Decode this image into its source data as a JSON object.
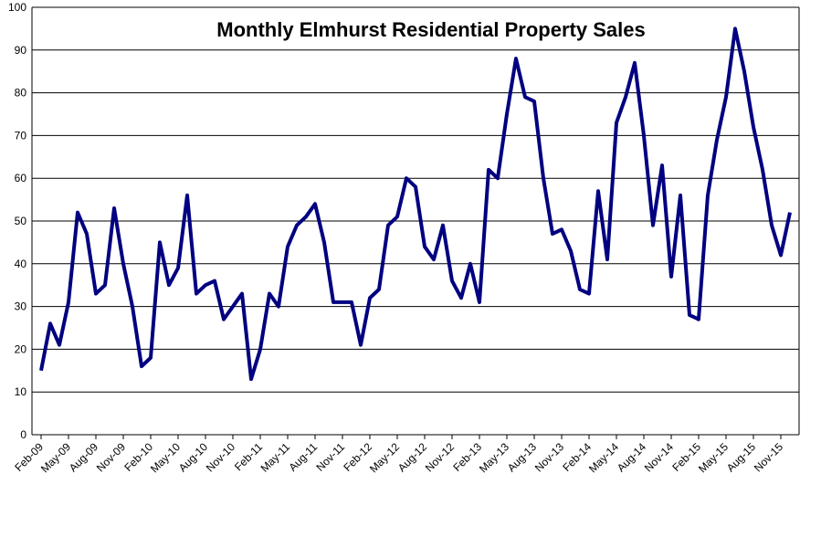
{
  "chart_data": {
    "type": "line",
    "title": "Monthly Elmhurst Residential Property Sales",
    "categories": [
      "Feb-09",
      null,
      null,
      "May-09",
      null,
      null,
      "Aug-09",
      null,
      null,
      "Nov-09",
      null,
      null,
      "Feb-10",
      null,
      null,
      "May-10",
      null,
      null,
      "Aug-10",
      null,
      null,
      "Nov-10",
      null,
      null,
      "Feb-11",
      null,
      null,
      "May-11",
      null,
      null,
      "Aug-11",
      null,
      null,
      "Nov-11",
      null,
      null,
      "Feb-12",
      null,
      null,
      "May-12",
      null,
      null,
      "Aug-12",
      null,
      null,
      "Nov-12",
      null,
      null,
      "Feb-13",
      null,
      null,
      "May-13",
      null,
      null,
      "Aug-13",
      null,
      null,
      "Nov-13",
      null,
      null,
      "Feb-14",
      null,
      null,
      "May-14",
      null,
      null,
      "Aug-14",
      null,
      null,
      "Nov-14",
      null,
      null,
      "Feb-15",
      null,
      null,
      "May-15",
      null,
      null,
      "Aug-15",
      null,
      null,
      "Nov-15",
      null
    ],
    "series": [
      {
        "color": "#000080",
        "values": [
          15,
          26,
          21,
          31,
          52,
          47,
          33,
          35,
          53,
          40,
          30,
          16,
          18,
          45,
          35,
          39,
          56,
          33,
          35,
          36,
          27,
          30,
          33,
          13,
          20,
          33,
          30,
          44,
          49,
          51,
          54,
          45,
          31,
          31,
          31,
          21,
          32,
          34,
          49,
          51,
          60,
          58,
          44,
          41,
          49,
          36,
          32,
          40,
          31,
          62,
          60,
          75,
          88,
          79,
          78,
          60,
          47,
          48,
          43,
          34,
          33,
          57,
          41,
          73,
          79,
          87,
          70,
          49,
          63,
          37,
          56,
          28,
          27,
          56,
          69,
          79,
          95,
          85,
          72,
          62,
          49,
          42,
          52
        ]
      }
    ],
    "ylim": [
      0,
      100
    ],
    "yticks": [
      0,
      10,
      20,
      30,
      40,
      50,
      60,
      70,
      80,
      90,
      100
    ],
    "grid": true
  }
}
